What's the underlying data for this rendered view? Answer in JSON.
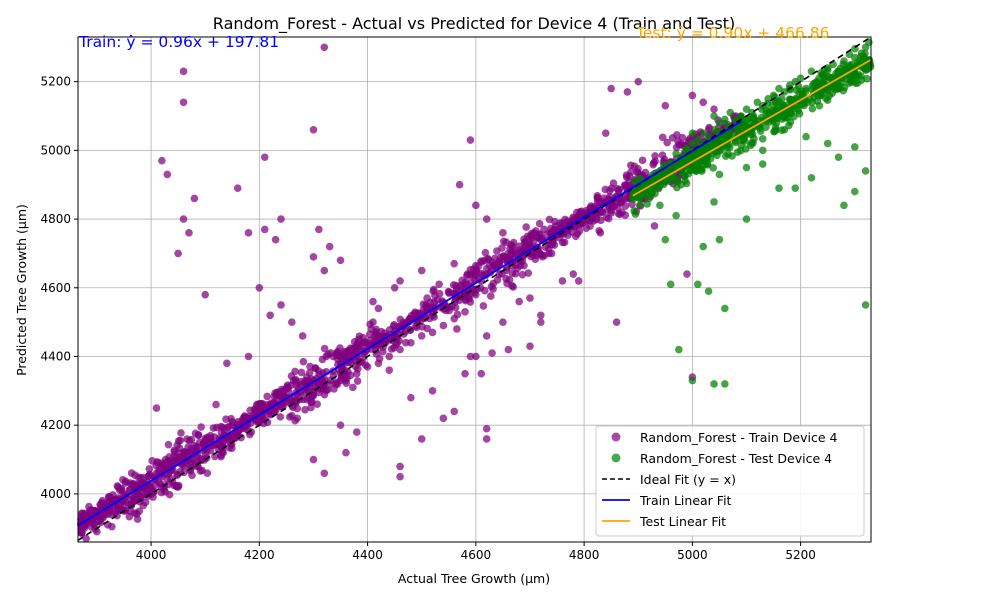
{
  "chart_data": {
    "type": "scatter",
    "title": "Random_Forest - Actual vs Predicted for Device 4 (Train and Test)",
    "xlabel": "Actual Tree Growth (μm)",
    "ylabel": "Predicted Tree Growth (μm)",
    "xlim": [
      3865,
      5330
    ],
    "ylim": [
      3860,
      5330
    ],
    "xticks": [
      4000,
      4200,
      4400,
      4600,
      4800,
      5000,
      5200
    ],
    "yticks": [
      4000,
      4200,
      4400,
      4600,
      4800,
      5000,
      5200
    ],
    "grid": true,
    "legend_position": "lower-right",
    "annotations": {
      "train_equation": "Train: ŷ = 0.96x + 197.81",
      "test_equation": "Test: ŷ = 0.90x + 466.86"
    },
    "series": [
      {
        "name": "Random_Forest - Train Device 4",
        "kind": "scatter",
        "color": "#800080",
        "approx_range_x": [
          3870,
          5090
        ],
        "x": [
          3880,
          3900,
          3920,
          3950,
          3970,
          3990,
          4000,
          4010,
          4020,
          4030,
          4040,
          4050,
          4060,
          4070,
          4080,
          4090,
          4100,
          4110,
          4130,
          4150,
          4170,
          4190,
          4200,
          4210,
          4220,
          4230,
          4250,
          4270,
          4290,
          4300,
          4310,
          4320,
          4330,
          4350,
          4380,
          4400,
          4420,
          4440,
          4460,
          4480,
          4500,
          4520,
          4540,
          4560,
          4580,
          4600,
          4610,
          4620,
          4640,
          4660,
          4680,
          4700,
          4720,
          4740,
          4760,
          4780,
          4800,
          4820,
          4840,
          4860,
          4880,
          4900,
          4920,
          4950,
          4980,
          5000,
          5020,
          5050,
          5080,
          4020,
          4030,
          4060,
          4060,
          4210,
          4320,
          4300,
          4060,
          4080,
          4070,
          4050,
          4100,
          4160,
          4180,
          4210,
          4230,
          4240,
          4300,
          4310,
          4330,
          4350,
          4240,
          4260,
          4280,
          4200,
          4220,
          4320,
          4410,
          4420,
          4460,
          4500,
          4510,
          4560,
          4570,
          4600,
          4620,
          4650,
          4600,
          4610,
          4630,
          4660,
          4700,
          4720,
          4760,
          4780,
          4840,
          4850,
          4880,
          4900,
          4950,
          5000,
          5020,
          5040,
          5080,
          4590,
          4560,
          4620,
          4460,
          4500,
          4380,
          4360,
          4460,
          4620,
          4700,
          4720,
          4860,
          4990,
          5000,
          4040,
          4100,
          4000,
          4150,
          4050,
          4120,
          4010,
          4090,
          4140,
          4180,
          4270,
          4300,
          4320,
          4350,
          4440,
          4480,
          4540,
          4580,
          4620,
          4680,
          4740,
          4790,
          4830,
          4870,
          4930,
          4410,
          4450,
          4520,
          4590,
          4650
        ],
        "y": [
          3870,
          3890,
          3910,
          3950,
          3980,
          4000,
          4010,
          4060,
          4060,
          4080,
          4090,
          4100,
          4110,
          4120,
          4140,
          4150,
          4150,
          4160,
          4180,
          4200,
          4220,
          4230,
          4240,
          4250,
          4260,
          4270,
          4280,
          4290,
          4300,
          4300,
          4310,
          4320,
          4320,
          4330,
          4350,
          4370,
          4380,
          4400,
          4420,
          4440,
          4460,
          4470,
          4490,
          4510,
          4530,
          4580,
          4620,
          4640,
          4660,
          4680,
          4700,
          4720,
          4740,
          4760,
          4780,
          4790,
          4810,
          4830,
          4850,
          4860,
          4880,
          4900,
          4920,
          4950,
          4980,
          5000,
          5020,
          5040,
          5070,
          4970,
          4930,
          5230,
          5140,
          4980,
          5300,
          5060,
          4800,
          4860,
          4760,
          4700,
          4580,
          4890,
          4760,
          4770,
          4740,
          4800,
          4690,
          4770,
          4720,
          4680,
          4550,
          4500,
          4460,
          4600,
          4520,
          4650,
          4560,
          4540,
          4620,
          4650,
          4570,
          4670,
          4900,
          4840,
          4800,
          4760,
          4400,
          4350,
          4410,
          4420,
          4570,
          4520,
          4620,
          4640,
          5050,
          5180,
          5170,
          5200,
          5130,
          5160,
          5140,
          5120,
          5100,
          5030,
          4240,
          4190,
          4050,
          4160,
          4180,
          4120,
          4080,
          4160,
          4430,
          4500,
          4500,
          4640,
          4340,
          4070,
          4150,
          4000,
          4210,
          4020,
          4260,
          4250,
          4100,
          4380,
          4400,
          4220,
          4100,
          4060,
          4200,
          4360,
          4280,
          4220,
          4350,
          4460,
          4560,
          4700,
          4620,
          4760,
          4820,
          4780,
          4500,
          4600,
          4300,
          4400,
          4500
        ]
      },
      {
        "name": "Random_Forest - Test Device 4",
        "kind": "scatter",
        "color": "#008000",
        "approx_range_x": [
          4890,
          5330
        ],
        "x": [
          4900,
          4910,
          4920,
          4930,
          4940,
          4950,
          4960,
          4970,
          4980,
          4990,
          5000,
          5010,
          5020,
          5030,
          5040,
          5050,
          5060,
          5070,
          5080,
          5090,
          5100,
          5110,
          5120,
          5130,
          5140,
          5150,
          5160,
          5170,
          5180,
          5190,
          5200,
          5210,
          5220,
          5230,
          5240,
          5250,
          5260,
          5270,
          5280,
          5290,
          5300,
          5310,
          5320,
          5325,
          4950,
          4960,
          4975,
          5000,
          5010,
          5030,
          5040,
          5060,
          5020,
          5040,
          5050,
          5060,
          5100,
          5130,
          5160,
          5190,
          5220,
          5250,
          5280,
          5300,
          5320,
          5320,
          5270,
          5300,
          5210,
          5170,
          5130,
          5100,
          5050,
          5010,
          4990,
          5000,
          5040,
          4970,
          4940,
          4920
        ],
        "y": [
          4870,
          4880,
          4900,
          4890,
          4940,
          4950,
          4960,
          4990,
          4980,
          5000,
          5020,
          5030,
          5050,
          5040,
          5060,
          5080,
          5090,
          5110,
          5090,
          5100,
          5120,
          5110,
          5140,
          5130,
          5150,
          5160,
          5180,
          5170,
          5190,
          5200,
          5210,
          5180,
          5230,
          5200,
          5220,
          5240,
          5250,
          5230,
          5260,
          5280,
          5270,
          5250,
          5300,
          5240,
          4740,
          4610,
          4420,
          4330,
          4610,
          4590,
          4320,
          4320,
          4720,
          4850,
          4740,
          4540,
          4800,
          4960,
          4890,
          4890,
          4920,
          5020,
          4840,
          4880,
          4550,
          4940,
          4980,
          5010,
          5040,
          5060,
          5000,
          4950,
          4930,
          4960,
          5000,
          5050,
          5100,
          4810,
          4840,
          4860
        ]
      },
      {
        "name": "Ideal Fit (y = x)",
        "kind": "line",
        "color": "#000000",
        "dash": true,
        "x": [
          3865,
          5330
        ],
        "y": [
          3865,
          5330
        ]
      },
      {
        "name": "Train Linear Fit",
        "kind": "line",
        "color": "#0000ff",
        "x": [
          3865,
          5090
        ],
        "y": [
          3908.21,
          5084.21
        ]
      },
      {
        "name": "Test Linear Fit",
        "kind": "line",
        "color": "#ffa500",
        "x": [
          4890,
          5330
        ],
        "y": [
          4867.86,
          5263.86
        ]
      }
    ]
  }
}
